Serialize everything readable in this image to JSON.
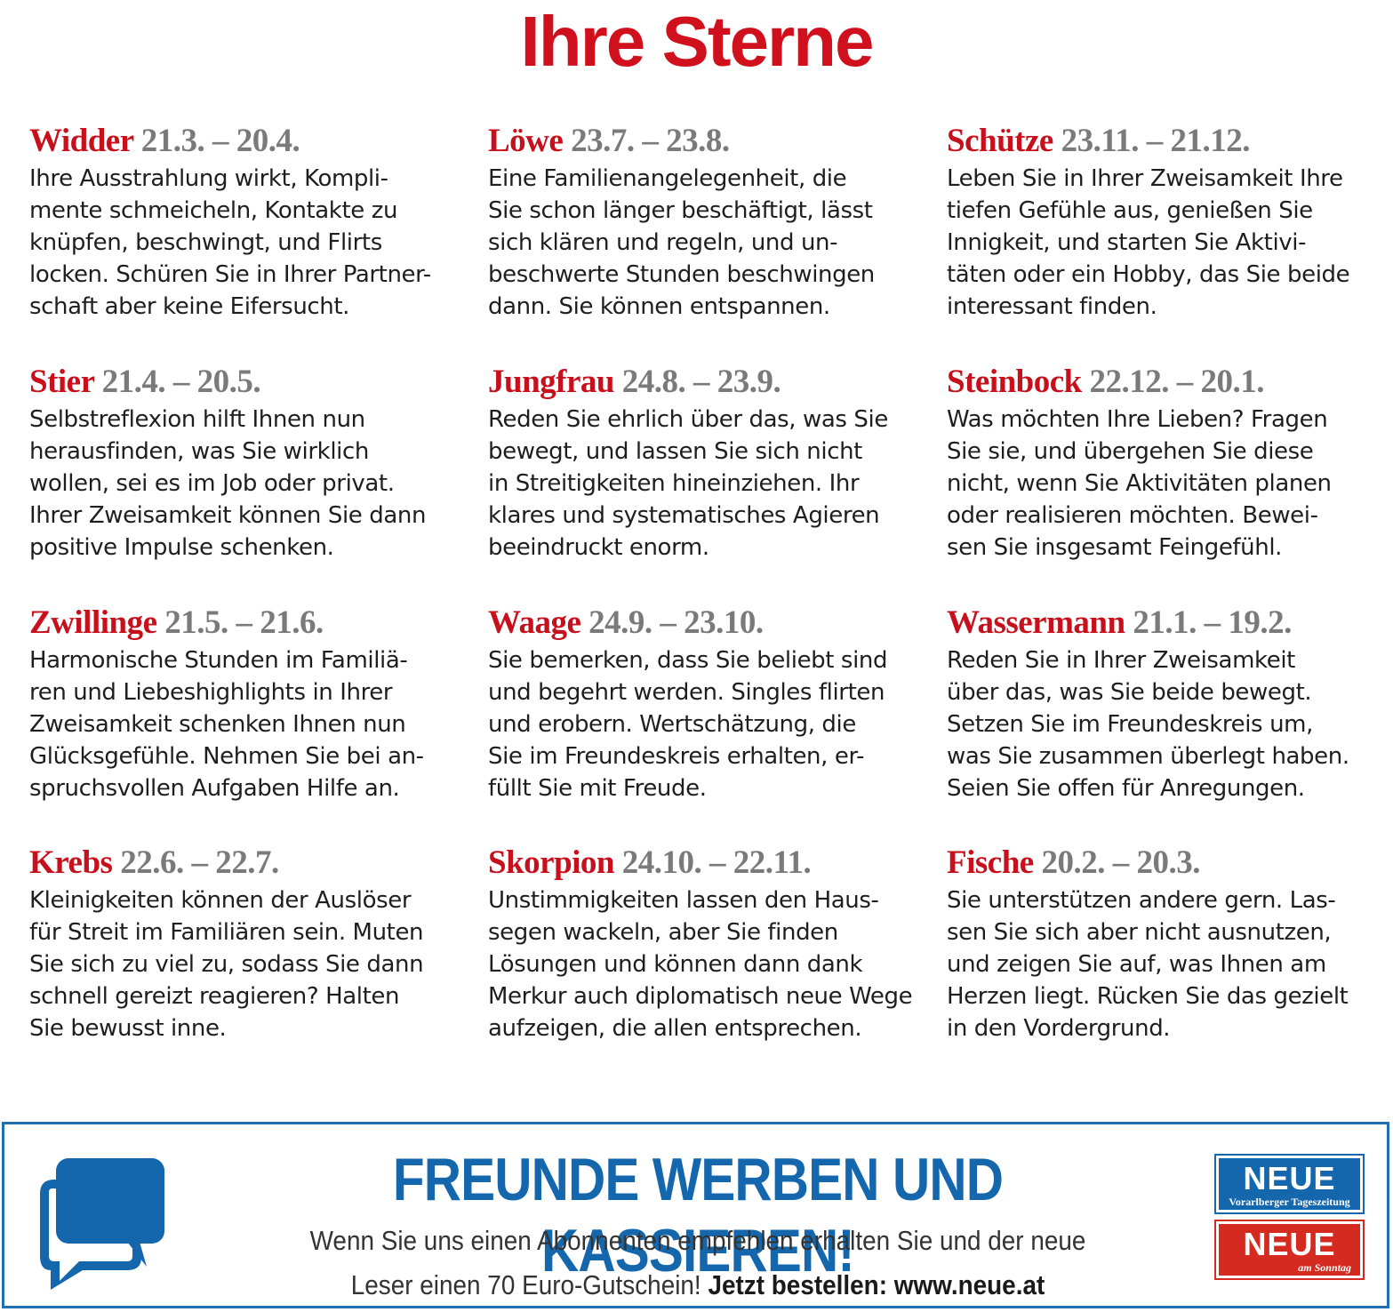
{
  "title": "Ihre Sterne",
  "signs": [
    {
      "name": "Widder",
      "dates": "21.3. – 20.4.",
      "text": "Ihre Ausstrahlung wirkt, Kompli-\nmente schmeicheln, Kontakte zu\nknüpfen, beschwingt, und Flirts\nlocken. Schüren Sie in Ihrer Partner-\nschaft aber keine Eifersucht."
    },
    {
      "name": "Stier",
      "dates": "21.4. – 20.5.",
      "text": "Selbstreflexion hilft Ihnen nun\nherausfinden, was Sie wirklich\nwollen, sei es im Job oder privat.\nIhrer Zweisamkeit können Sie dann\npositive Impulse schenken."
    },
    {
      "name": "Zwillinge",
      "dates": "21.5. – 21.6.",
      "text": "Harmonische Stunden im Familiä-\nren und Liebeshighlights in Ihrer\nZweisamkeit schenken Ihnen nun\nGlücksgefühle. Nehmen Sie bei an-\nspruchsvollen Aufgaben Hilfe an."
    },
    {
      "name": "Krebs",
      "dates": "22.6. – 22.7.",
      "text": "Kleinigkeiten können der Auslöser\nfür Streit im Familiären sein. Muten\nSie sich zu viel zu, sodass Sie dann\nschnell gereizt reagieren? Halten\nSie bewusst inne."
    },
    {
      "name": "Löwe",
      "dates": "23.7. – 23.8.",
      "text": "Eine Familienangelegenheit, die\nSie schon länger beschäftigt, lässt\nsich klären und regeln, und un-\nbeschwerte Stunden beschwingen\ndann. Sie können entspannen."
    },
    {
      "name": "Jungfrau",
      "dates": "24.8. – 23.9.",
      "text": "Reden Sie ehrlich über das, was Sie\nbewegt, und lassen Sie sich nicht\nin Streitigkeiten hineinziehen. Ihr\nklares und systematisches Agieren\nbeeindruckt enorm."
    },
    {
      "name": "Waage",
      "dates": "24.9. – 23.10.",
      "text": "Sie bemerken, dass Sie beliebt sind\nund begehrt werden. Singles flirten\nund erobern. Wertschätzung, die\nSie im Freundeskreis erhalten, er-\nfüllt Sie mit Freude."
    },
    {
      "name": "Skorpion",
      "dates": "24.10. – 22.11.",
      "text": "Unstimmigkeiten lassen den Haus-\nsegen wackeln, aber Sie finden\nLösungen und können dann dank\nMerkur auch diplomatisch neue Wege\naufzeigen, die allen entsprechen."
    },
    {
      "name": "Schütze",
      "dates": "23.11. – 21.12.",
      "text": "Leben Sie in Ihrer Zweisamkeit Ihre\ntiefen Gefühle aus, genießen Sie\nInnigkeit, und starten Sie Aktivi-\ntäten oder ein Hobby, das Sie beide\ninteressant finden."
    },
    {
      "name": "Steinbock",
      "dates": "22.12. – 20.1.",
      "text": "Was möchten Ihre Lieben? Fragen\nSie sie, und übergehen Sie diese\nnicht, wenn Sie Aktivitäten planen\noder realisieren möchten. Bewei-\nsen Sie insgesamt Feingefühl."
    },
    {
      "name": "Wassermann",
      "dates": "21.1. – 19.2.",
      "text": "Reden Sie in Ihrer Zweisamkeit\nüber das, was Sie beide bewegt.\nSetzen Sie im Freundeskreis um,\nwas Sie zusammen überlegt haben.\nSeien Sie offen für Anregungen."
    },
    {
      "name": "Fische",
      "dates": "20.2. – 20.3.",
      "text": "Sie unterstützen andere gern. Las-\nsen Sie sich aber nicht ausnutzen,\nund zeigen Sie auf, was Ihnen am\nHerzen liegt. Rücken Sie das gezielt\nin den Vordergrund."
    }
  ],
  "promo": {
    "headline": "FREUNDE WERBEN UND KASSIEREN!",
    "line1": "Wenn Sie uns einen Abonnenten empfehlen erhalten Sie und der neue",
    "line2": "Leser einen 70 Euro-Gutschein!",
    "cta": "Jetzt bestellen: www.neue.at",
    "icon": "speech-bubbles-icon",
    "color": "#1467ad"
  },
  "logos": {
    "blue": {
      "word": "NEUE",
      "sub": "Vorarlberger Tageszeitung"
    },
    "red": {
      "word": "NEUE",
      "sub": "am Sonntag"
    }
  },
  "colors": {
    "accent_red": "#c8101c",
    "date_grey": "#7a7a7a",
    "brand_blue": "#1467ad"
  }
}
